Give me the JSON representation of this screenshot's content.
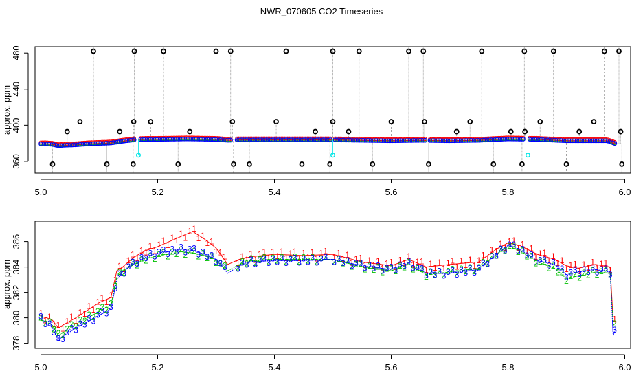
{
  "figure": {
    "title": "NWR_070605  CO2 Timeseries"
  },
  "colors": {
    "series_1": "#ff0000",
    "series_2": "#00c000",
    "series_3": "#0000ff",
    "outlier": "#000000",
    "flag": "#00e5e5",
    "trace": "#8c8c8c"
  },
  "chart_data": [
    {
      "type": "scatter",
      "title": "",
      "xlabel": "",
      "ylabel": "approx. ppm",
      "xlim": [
        4.99,
        6.01
      ],
      "ylim": [
        347,
        487
      ],
      "xticks": [
        "5.0",
        "5.2",
        "5.4",
        "5.6",
        "5.8",
        "6.0"
      ],
      "xtick_values": [
        5.0,
        5.2,
        5.4,
        5.6,
        5.8,
        6.0
      ],
      "yticks": [
        "360",
        "400",
        "440",
        "480"
      ],
      "ytick_values": [
        360,
        400,
        440,
        480
      ],
      "grid": false,
      "baseline_curve": {
        "x": [
          5.0,
          5.01,
          5.02,
          5.03,
          5.04,
          5.06,
          5.08,
          5.1,
          5.12,
          5.14,
          5.16,
          5.18,
          5.2,
          5.25,
          5.3,
          5.32,
          5.34,
          5.4,
          5.45,
          5.5,
          5.55,
          5.6,
          5.65,
          5.7,
          5.75,
          5.8,
          5.85,
          5.9,
          5.95,
          5.97,
          5.985
        ],
        "y": [
          380,
          380,
          379.5,
          378,
          378.5,
          379,
          380,
          380.5,
          381,
          383,
          384.5,
          385,
          385,
          385.5,
          385,
          384,
          384.5,
          384.5,
          384.5,
          384.5,
          384,
          383.5,
          384,
          383.5,
          384,
          385.5,
          385,
          383.5,
          383.5,
          383.5,
          380
        ]
      },
      "gaps": [
        5.165,
        5.33,
        5.5,
        5.662,
        5.832
      ],
      "spikes_high": [
        5.09,
        5.16,
        5.21,
        5.3,
        5.325,
        5.42,
        5.5,
        5.545,
        5.63,
        5.655,
        5.755,
        5.828,
        5.878,
        5.965,
        5.99
      ],
      "spikes_mid": [
        5.045,
        5.067,
        5.135,
        5.159,
        5.188,
        5.255,
        5.328,
        5.403,
        5.47,
        5.5,
        5.527,
        5.6,
        5.657,
        5.712,
        5.735,
        5.805,
        5.829,
        5.855,
        5.922,
        5.947,
        5.993
      ],
      "spikes_mid_values": [
        393,
        404,
        393,
        404,
        404,
        393,
        404,
        404,
        393,
        404,
        393,
        404,
        404,
        393,
        404,
        393,
        393,
        404,
        393,
        404,
        393
      ],
      "spikes_low": [
        5.02,
        5.113,
        5.158,
        5.235,
        5.33,
        5.357,
        5.447,
        5.495,
        5.568,
        5.664,
        5.775,
        5.824,
        5.9,
        5.995
      ],
      "spikes_low_value": 357,
      "flag_points": [
        {
          "x": 5.167,
          "y": 367
        },
        {
          "x": 5.5,
          "y": 367
        },
        {
          "x": 5.834,
          "y": 367
        }
      ]
    },
    {
      "type": "line",
      "title": "",
      "xlabel": "",
      "ylabel": "approx. ppm",
      "xlim": [
        4.99,
        6.01
      ],
      "ylim": [
        377.6,
        387.6
      ],
      "xticks": [
        "5.0",
        "5.2",
        "5.4",
        "5.6",
        "5.8",
        "6.0"
      ],
      "xtick_values": [
        5.0,
        5.2,
        5.4,
        5.6,
        5.8,
        6.0
      ],
      "yticks": [
        "378",
        "380",
        "382",
        "384",
        "386"
      ],
      "ytick_values": [
        378,
        380,
        382,
        384,
        386
      ],
      "grid": false,
      "markers": [
        "1",
        "2",
        "3"
      ],
      "series": [
        {
          "marker": "1",
          "x": [
            5.0,
            5.01,
            5.02,
            5.03,
            5.04,
            5.06,
            5.08,
            5.1,
            5.12,
            5.13,
            5.14,
            5.16,
            5.18,
            5.2,
            5.22,
            5.24,
            5.26,
            5.28,
            5.3,
            5.32,
            5.34,
            5.36,
            5.4,
            5.45,
            5.5,
            5.55,
            5.6,
            5.63,
            5.66,
            5.7,
            5.75,
            5.78,
            5.8,
            5.82,
            5.85,
            5.88,
            5.9,
            5.92,
            5.95,
            5.975,
            5.98,
            5.985
          ],
          "y": [
            380.1,
            380,
            379.8,
            379.2,
            379.5,
            380,
            380.6,
            381.2,
            381.6,
            383.7,
            384,
            384.8,
            385.3,
            385.6,
            386,
            386.4,
            386.8,
            386.2,
            385.5,
            384.2,
            384.6,
            384.8,
            385,
            384.9,
            385,
            384.4,
            384.1,
            384.6,
            384,
            384.2,
            384.4,
            385.4,
            385.9,
            385.7,
            385,
            384.6,
            384.1,
            383.9,
            384.2,
            384,
            379.8,
            379.6
          ]
        },
        {
          "marker": "2",
          "x": [
            5.0,
            5.01,
            5.02,
            5.03,
            5.04,
            5.06,
            5.08,
            5.1,
            5.12,
            5.13,
            5.14,
            5.16,
            5.18,
            5.2,
            5.22,
            5.24,
            5.26,
            5.28,
            5.3,
            5.32,
            5.34,
            5.36,
            5.4,
            5.45,
            5.5,
            5.55,
            5.6,
            5.63,
            5.66,
            5.7,
            5.75,
            5.78,
            5.8,
            5.82,
            5.85,
            5.88,
            5.9,
            5.92,
            5.95,
            5.975,
            5.98,
            5.985
          ],
          "y": [
            379.8,
            379.7,
            379.4,
            378.6,
            378.9,
            379.5,
            380,
            380.5,
            381,
            383.2,
            383.7,
            384.2,
            384.6,
            384.9,
            385,
            385.2,
            385.1,
            384.9,
            384.5,
            383.7,
            384.2,
            384.5,
            384.6,
            384.6,
            384.6,
            384,
            383.7,
            384.2,
            383.4,
            383.6,
            383.9,
            385,
            385.6,
            385.3,
            384.4,
            383.9,
            383.1,
            383.3,
            383.6,
            383.5,
            379.5,
            379.3
          ]
        },
        {
          "marker": "3",
          "x": [
            5.0,
            5.01,
            5.02,
            5.03,
            5.04,
            5.06,
            5.08,
            5.1,
            5.12,
            5.13,
            5.14,
            5.16,
            5.18,
            5.2,
            5.22,
            5.24,
            5.26,
            5.28,
            5.3,
            5.32,
            5.34,
            5.36,
            5.4,
            5.45,
            5.5,
            5.55,
            5.6,
            5.63,
            5.66,
            5.7,
            5.75,
            5.78,
            5.8,
            5.82,
            5.85,
            5.88,
            5.9,
            5.92,
            5.95,
            5.975,
            5.98,
            5.985
          ],
          "y": [
            379.9,
            379.6,
            379.2,
            378.2,
            378.6,
            379.2,
            379.7,
            380.2,
            380.7,
            383,
            383.6,
            384.3,
            384.8,
            385.1,
            385.2,
            385.4,
            385.3,
            385,
            384.6,
            383.5,
            384.1,
            384.4,
            384.5,
            384.5,
            384.6,
            384.1,
            383.8,
            384.3,
            383.5,
            383.5,
            383.8,
            385,
            385.7,
            385.4,
            384.5,
            384.2,
            383.4,
            383.6,
            383.8,
            383.6,
            378.6,
            379.2
          ]
        }
      ]
    }
  ]
}
